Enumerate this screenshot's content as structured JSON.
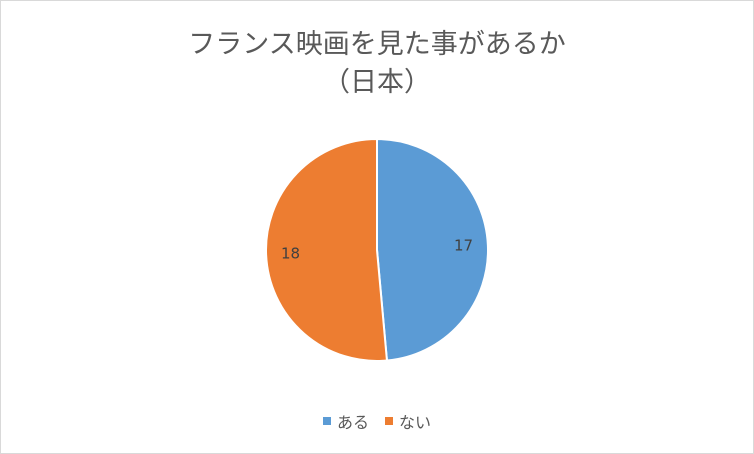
{
  "chart_data": {
    "type": "pie",
    "title": "フランス映画を見た事があるか",
    "subtitle": "（日本）",
    "categories": [
      "ある",
      "ない"
    ],
    "values": [
      17,
      18
    ],
    "colors": [
      "#5b9bd5",
      "#ed7d31"
    ],
    "legend_position": "bottom"
  }
}
